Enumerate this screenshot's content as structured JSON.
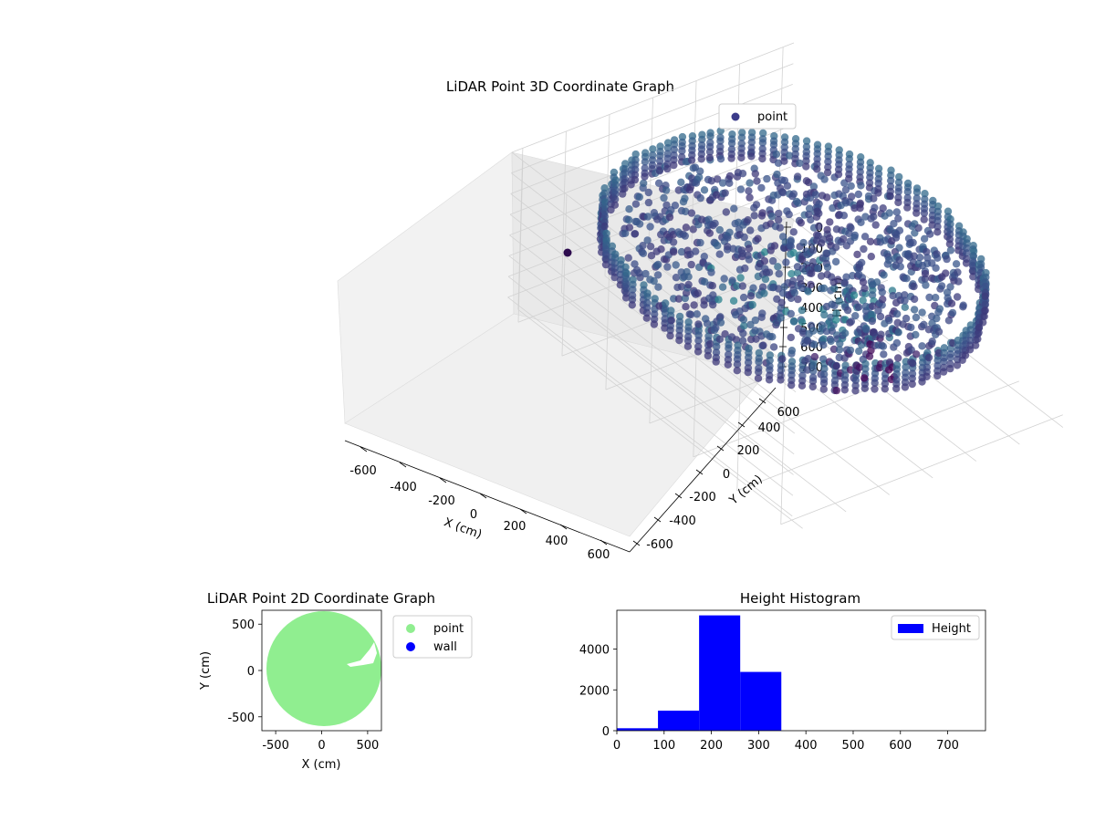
{
  "chart_data": [
    {
      "type": "scatter",
      "projection": "3d",
      "title": "LiDAR Point 3D Coordinate Graph",
      "xlabel": "X (cm)",
      "ylabel": "Y (cm)",
      "zlabel": "H (cm)",
      "xlim": [
        -650,
        650
      ],
      "ylim": [
        -650,
        650
      ],
      "zlim": [
        780,
        0
      ],
      "z_inverted": true,
      "x_ticks": [
        -600,
        -400,
        -200,
        0,
        200,
        400,
        600
      ],
      "y_ticks": [
        -600,
        -400,
        -200,
        0,
        200,
        400,
        600
      ],
      "z_ticks": [
        0,
        100,
        200,
        300,
        400,
        500,
        600,
        700
      ],
      "legend": {
        "entries": [
          "point"
        ],
        "placement": "top-right"
      },
      "series": [
        {
          "name": "point",
          "colormap": "viridis",
          "description_of_data": "circular wall ring of points radius ~600, heights 200-340, plus interior clutter",
          "points": [
            {
              "x": -630,
              "y": 0,
              "h": 220
            },
            {
              "x": 0,
              "y": 630,
              "h": 220
            },
            {
              "x": 630,
              "y": 0,
              "h": 250
            },
            {
              "x": 0,
              "y": -630,
              "h": 250
            },
            {
              "x": -445,
              "y": 445,
              "h": 210
            },
            {
              "x": 445,
              "y": 445,
              "h": 240
            },
            {
              "x": 445,
              "y": -445,
              "h": 300
            },
            {
              "x": -445,
              "y": -445,
              "h": 300
            },
            {
              "x": -100,
              "y": 380,
              "h": 120
            },
            {
              "x": 150,
              "y": 200,
              "h": 250
            },
            {
              "x": 300,
              "y": 100,
              "h": 300
            },
            {
              "x": 200,
              "y": -150,
              "h": 330
            }
          ]
        }
      ],
      "legend_color": "#3b3b8a"
    },
    {
      "type": "scatter",
      "title": "LiDAR Point 2D Coordinate Graph",
      "xlabel": "X (cm)",
      "ylabel": "Y (cm)",
      "xlim": [
        -650,
        650
      ],
      "ylim": [
        -650,
        650
      ],
      "x_ticks": [
        -500,
        0,
        500
      ],
      "y_ticks": [
        -500,
        0,
        500
      ],
      "legend": {
        "entries": [
          "point",
          "wall"
        ],
        "placement": "outside-right"
      },
      "series": [
        {
          "name": "point",
          "color": "#90ee90",
          "shape": "filled disk radius ~620 centered near (0,0)"
        },
        {
          "name": "wall",
          "color": "#0000ff"
        }
      ]
    },
    {
      "type": "bar",
      "subtype": "histogram",
      "title": "Height Histogram",
      "xlim": [
        0,
        780
      ],
      "ylim": [
        0,
        5900
      ],
      "x_ticks": [
        0,
        100,
        200,
        300,
        400,
        500,
        600,
        700
      ],
      "y_ticks": [
        0,
        2000,
        4000
      ],
      "legend": {
        "entries": [
          "Height"
        ],
        "placement": "top-right"
      },
      "bar_color": "#0000ff",
      "bins": [
        {
          "start": 0,
          "end": 87,
          "count": 120
        },
        {
          "start": 87,
          "end": 174,
          "count": 980
        },
        {
          "start": 174,
          "end": 261,
          "count": 5650
        },
        {
          "start": 261,
          "end": 348,
          "count": 2880
        }
      ]
    }
  ]
}
